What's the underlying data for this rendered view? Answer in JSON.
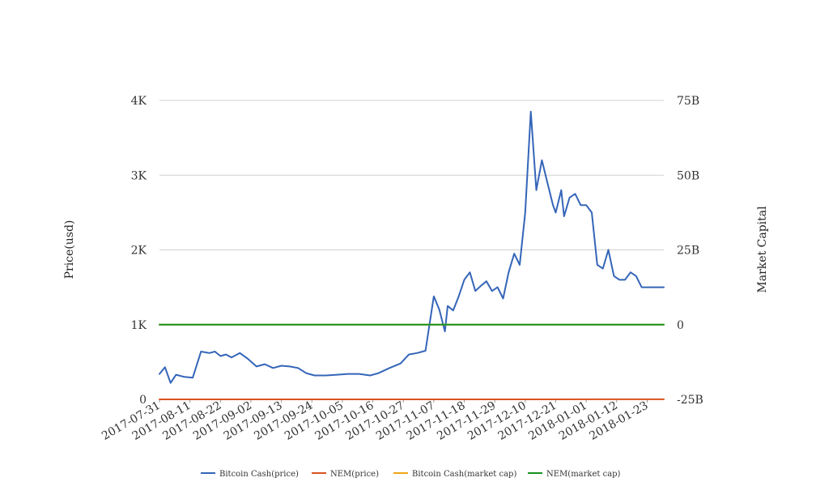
{
  "chart_data": {
    "type": "line",
    "title": "",
    "y_left": {
      "label": "Price(usd)",
      "range": [
        0,
        4000
      ],
      "ticks": [
        {
          "value": 0,
          "label": "0"
        },
        {
          "value": 1000,
          "label": "1K"
        },
        {
          "value": 2000,
          "label": "2K"
        },
        {
          "value": 3000,
          "label": "3K"
        },
        {
          "value": 4000,
          "label": "4K"
        }
      ]
    },
    "y_right": {
      "label": "Market Capital",
      "range": [
        -25000000000,
        75000000000
      ],
      "ticks": [
        {
          "value": -25000000000,
          "label": "-25B"
        },
        {
          "value": 0,
          "label": "0"
        },
        {
          "value": 25000000000,
          "label": "25B"
        },
        {
          "value": 50000000000,
          "label": "50B"
        },
        {
          "value": 75000000000,
          "label": "75B"
        }
      ]
    },
    "x_axis": {
      "start": "2017-07-31",
      "end": "2018-01-29",
      "tick_labels": [
        "2017-07-31",
        "2017-08-11",
        "2017-08-22",
        "2017-09-02",
        "2017-09-13",
        "2017-09-24",
        "2017-10-05",
        "2017-10-16",
        "2017-10-27",
        "2017-11-07",
        "2017-11-18",
        "2017-11-29",
        "2017-12-10",
        "2017-12-21",
        "2018-01-01",
        "2018-01-12",
        "2018-01-23"
      ]
    },
    "grid": true,
    "legend_position": "bottom",
    "series": [
      {
        "name": "Bitcoin Cash(price)",
        "axis": "left",
        "color": "#3465b8",
        "x": [
          "2017-07-31",
          "2017-08-02",
          "2017-08-04",
          "2017-08-06",
          "2017-08-09",
          "2017-08-12",
          "2017-08-15",
          "2017-08-18",
          "2017-08-20",
          "2017-08-22",
          "2017-08-24",
          "2017-08-26",
          "2017-08-29",
          "2017-09-01",
          "2017-09-04",
          "2017-09-07",
          "2017-09-10",
          "2017-09-13",
          "2017-09-16",
          "2017-09-19",
          "2017-09-22",
          "2017-09-25",
          "2017-09-29",
          "2017-10-03",
          "2017-10-07",
          "2017-10-11",
          "2017-10-15",
          "2017-10-18",
          "2017-10-22",
          "2017-10-26",
          "2017-10-29",
          "2017-11-01",
          "2017-11-04",
          "2017-11-07",
          "2017-11-09",
          "2017-11-11",
          "2017-11-12",
          "2017-11-14",
          "2017-11-16",
          "2017-11-18",
          "2017-11-20",
          "2017-11-22",
          "2017-11-24",
          "2017-11-26",
          "2017-11-28",
          "2017-11-30",
          "2017-12-02",
          "2017-12-04",
          "2017-12-06",
          "2017-12-08",
          "2017-12-10",
          "2017-12-12",
          "2017-12-14",
          "2017-12-16",
          "2017-12-18",
          "2017-12-20",
          "2017-12-21",
          "2017-12-23",
          "2017-12-24",
          "2017-12-26",
          "2017-12-28",
          "2017-12-30",
          "2018-01-01",
          "2018-01-03",
          "2018-01-05",
          "2018-01-07",
          "2018-01-09",
          "2018-01-11",
          "2018-01-13",
          "2018-01-15",
          "2018-01-17",
          "2018-01-19",
          "2018-01-21",
          "2018-01-23",
          "2018-01-25",
          "2018-01-27",
          "2018-01-29"
        ],
        "values": [
          340,
          430,
          220,
          330,
          300,
          290,
          640,
          620,
          640,
          580,
          600,
          560,
          620,
          540,
          440,
          470,
          420,
          450,
          440,
          420,
          350,
          320,
          320,
          330,
          340,
          340,
          320,
          350,
          420,
          480,
          600,
          620,
          650,
          1380,
          1200,
          910,
          1250,
          1190,
          1380,
          1600,
          1700,
          1450,
          1520,
          1580,
          1450,
          1500,
          1350,
          1700,
          1950,
          1800,
          2500,
          3850,
          2800,
          3200,
          2900,
          2600,
          2500,
          2800,
          2450,
          2700,
          2750,
          2600,
          2600,
          2500,
          1800,
          1750,
          2000,
          1650,
          1600,
          1600,
          1700,
          1650,
          1500,
          1500,
          1500,
          1500,
          1500
        ]
      },
      {
        "name": "NEM(price)",
        "axis": "left",
        "color": "#d9531e",
        "x": [
          "2017-07-31",
          "2017-09-13",
          "2017-10-27",
          "2017-12-10",
          "2018-01-12",
          "2018-01-29"
        ],
        "values": [
          0.18,
          0.2,
          0.2,
          0.5,
          1.5,
          0.9
        ]
      },
      {
        "name": "Bitcoin Cash(market cap)",
        "axis": "right",
        "color": "#eda515",
        "x": [
          "2017-07-31",
          "2017-08-02",
          "2017-08-04",
          "2017-08-06",
          "2017-08-09",
          "2017-08-12",
          "2017-08-15",
          "2017-08-17",
          "2017-08-20",
          "2017-08-23",
          "2017-08-26",
          "2017-08-29",
          "2017-09-01",
          "2017-09-04",
          "2017-09-07",
          "2017-09-10",
          "2017-09-13",
          "2017-09-16",
          "2017-09-19",
          "2017-09-22",
          "2017-09-25",
          "2017-09-29",
          "2017-10-03",
          "2017-10-07",
          "2017-10-11",
          "2017-10-15",
          "2017-10-18",
          "2017-10-22",
          "2017-10-26",
          "2017-10-29",
          "2017-11-01",
          "2017-11-04",
          "2017-11-07",
          "2017-11-09",
          "2017-11-11",
          "2017-11-12",
          "2017-11-14",
          "2017-11-16",
          "2017-11-18",
          "2017-11-20",
          "2017-11-22",
          "2017-11-24",
          "2017-11-26",
          "2017-11-28",
          "2017-11-30",
          "2017-12-02",
          "2017-12-04",
          "2017-12-06",
          "2017-12-08",
          "2017-12-10",
          "2017-12-12",
          "2017-12-14",
          "2017-12-16",
          "2017-12-18",
          "2017-12-20",
          "2017-12-21",
          "2017-12-23",
          "2017-12-24",
          "2017-12-26",
          "2017-12-28",
          "2017-12-30",
          "2018-01-01",
          "2018-01-03",
          "2018-01-05",
          "2018-01-07",
          "2018-01-09",
          "2018-01-11",
          "2018-01-13",
          "2018-01-15",
          "2018-01-17",
          "2018-01-19",
          "2018-01-21",
          "2018-01-23",
          "2018-01-25",
          "2018-01-27",
          "2018-01-29"
        ],
        "values": [
          0,
          7200,
          4000,
          5000,
          5000,
          5000,
          11800,
          10800,
          10500,
          10800,
          9500,
          10400,
          8500,
          6500,
          7000,
          6500,
          6800,
          6800,
          6500,
          5500,
          5300,
          4900,
          5000,
          5200,
          5800,
          5800,
          6500,
          9500,
          9800,
          20500,
          17500,
          12500,
          20300,
          20500,
          26000,
          23000,
          27700,
          25000,
          26500,
          24000,
          24700,
          24000,
          24200,
          26000,
          25500,
          26000,
          25500,
          33000,
          30000,
          43000,
          63000,
          46500,
          50000,
          46000,
          43000,
          44000,
          46500,
          41000,
          47000,
          47000,
          42000,
          42500,
          30000,
          29500,
          35000,
          26500,
          26000,
          26000,
          27000,
          25500,
          25500,
          25500,
          25500,
          25500,
          25500,
          25000
        ]
      },
      {
        "name": "NEM(market cap)",
        "axis": "right",
        "color": "#17921f",
        "x": [
          "2017-07-31",
          "2017-08-11",
          "2017-08-22",
          "2017-09-02",
          "2017-09-13",
          "2017-09-24",
          "2017-10-05",
          "2017-10-16",
          "2017-10-27",
          "2017-11-07",
          "2017-11-18",
          "2017-11-29",
          "2017-12-06",
          "2017-12-08",
          "2017-12-10",
          "2017-12-14",
          "2017-12-18",
          "2017-12-21",
          "2017-12-25",
          "2017-12-29",
          "2018-01-01",
          "2018-01-04",
          "2018-01-07",
          "2018-01-10",
          "2018-01-13",
          "2018-01-16",
          "2018-01-19",
          "2018-01-22",
          "2018-01-25",
          "2018-01-29"
        ],
        "values": [
          1500,
          2300,
          2600,
          2800,
          2300,
          2100,
          1800,
          1800,
          1700,
          1800,
          2000,
          2200,
          2600,
          6000,
          4000,
          5000,
          6800,
          8500,
          8000,
          8300,
          9000,
          16500,
          15000,
          14000,
          13500,
          8800,
          9500,
          8200,
          8500,
          7000
        ]
      }
    ]
  }
}
